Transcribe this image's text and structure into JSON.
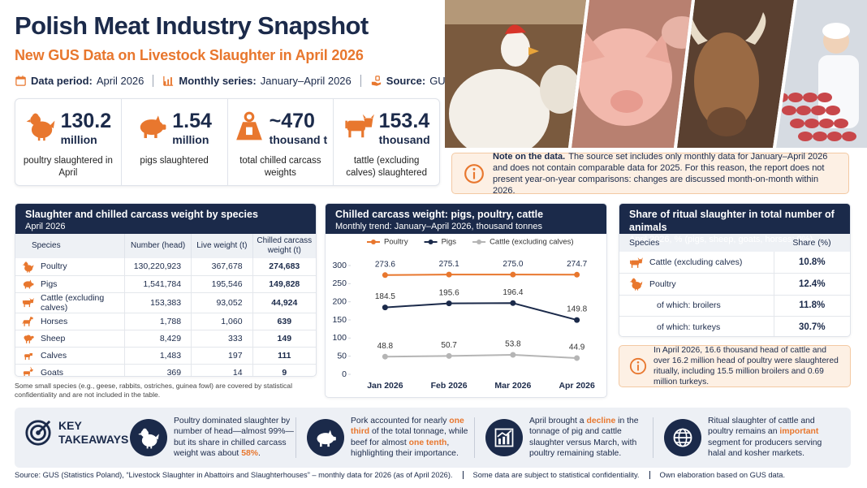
{
  "header": {
    "title": "Polish Meat Industry Snapshot",
    "subtitle": "New GUS Data on Livestock Slaughter in April 2026",
    "meta": [
      {
        "label": "Data period:",
        "value": "April 2026"
      },
      {
        "label": "Monthly series:",
        "value": "January–April 2026"
      },
      {
        "label": "Source:",
        "value": "GUS"
      }
    ]
  },
  "kpis": [
    {
      "value": "130.2",
      "unit": "million",
      "label": "poultry slaughtered in April"
    },
    {
      "value": "1.54",
      "unit": "million",
      "label": "pigs slaughtered"
    },
    {
      "value": "~470",
      "unit": "thousand t",
      "label": "total chilled carcass weights"
    },
    {
      "value": "153.4",
      "unit": "thousand",
      "label": "tattle (excluding calves) slaughtered"
    }
  ],
  "note": {
    "bold": "Note on the data.",
    "text": "The source set includes only monthly data for January–April 2026 and does not contain comparable data for 2025. For this reason, the report does not present year-on-year comparisons: changes are discussed month-on-month within 2026."
  },
  "species_table": {
    "title": "Slaughter and chilled carcass weight by species",
    "subtitle": "April 2026",
    "columns": [
      "Species",
      "Number (head)",
      "Live weight (t)",
      "Chilled carcass weight (t)"
    ],
    "rows": [
      [
        "Poultry",
        "130,220,923",
        "367,678",
        "274,683"
      ],
      [
        "Pigs",
        "1,541,784",
        "195,546",
        "149,828"
      ],
      [
        "Cattle (excluding calves)",
        "153,383",
        "93,052",
        "44,924"
      ],
      [
        "Horses",
        "1,788",
        "1,060",
        "639"
      ],
      [
        "Sheep",
        "8,429",
        "333",
        "149"
      ],
      [
        "Calves",
        "1,483",
        "197",
        "111"
      ],
      [
        "Goats",
        "369",
        "14",
        "9"
      ]
    ],
    "footnote": "Some small species (e.g., geese, rabbits, ostriches, guinea fowl) are covered by statistical confidentiality and are not included in the table."
  },
  "chart_data": {
    "type": "line",
    "title": "Chilled carcass weight: pigs, poultry, cattle",
    "subtitle": "Monthly trend: January–April 2026, thousand tonnes",
    "categories": [
      "Jan 2026",
      "Feb 2026",
      "Mar 2026",
      "Apr 2026"
    ],
    "series": [
      {
        "name": "Poultry",
        "color": "#e8772e",
        "values": [
          273.6,
          275.1,
          275.0,
          274.7
        ],
        "value_labels": [
          "273.6",
          "275.1",
          "275.0",
          "274.7"
        ]
      },
      {
        "name": "Pigs",
        "color": "#1b2a4a",
        "values": [
          184.5,
          195.6,
          196.4,
          149.8
        ],
        "value_labels": [
          "184.5",
          "195.6",
          "196.4",
          "149.8"
        ]
      },
      {
        "name": "Cattle (excluding calves)",
        "color": "#b5b5b5",
        "values": [
          48.8,
          50.7,
          53.8,
          44.9
        ],
        "value_labels": [
          "48.8",
          "50.7",
          "53.8",
          "44.9"
        ]
      }
    ],
    "ylim": [
      0,
      300
    ],
    "yticks": [
      0,
      50,
      100,
      150,
      200,
      250,
      300
    ],
    "legend": "top"
  },
  "ritual": {
    "title": "Share of ritual slaughter in total number of animals",
    "subtitle": "April 2026, % (pigs, sheep, goats, horses: 0%)",
    "columns": [
      "Species",
      "Share (%)"
    ],
    "rows": [
      [
        "Cattle (excluding calves)",
        "10.8%"
      ],
      [
        "Poultry",
        "12.4%"
      ],
      [
        "of which: broilers",
        "11.8%"
      ],
      [
        "of which: turkeys",
        "30.7%"
      ]
    ],
    "note": "In April 2026, 16.6 thousand head of cattle and over 16.2 million head of poultry were slaughtered ritually, including 15.5 million broilers and 0.69 million turkeys."
  },
  "takeaways": {
    "title": "KEY TAKEAWAYS",
    "items": [
      {
        "segments": [
          {
            "text": "Poultry dominated slaughter by number of head—almost 99%—but its share in chilled carcass weight was about "
          },
          {
            "text": "58%",
            "highlight": true
          },
          {
            "text": "."
          }
        ]
      },
      {
        "segments": [
          {
            "text": "Pork accounted for nearly "
          },
          {
            "text": "one third",
            "highlight": true
          },
          {
            "text": " of the total tonnage, while beef for almost "
          },
          {
            "text": "one tenth",
            "highlight": true
          },
          {
            "text": ", highlighting their importance."
          }
        ]
      },
      {
        "segments": [
          {
            "text": "April brought a "
          },
          {
            "text": "decline",
            "highlight": true
          },
          {
            "text": " in the tonnage of pig and cattle slaughter versus March, with poultry remaining stable."
          }
        ]
      },
      {
        "segments": [
          {
            "text": "Ritual slaughter of cattle and poultry remains an "
          },
          {
            "text": "important",
            "highlight": true
          },
          {
            "text": " segment for producers serving halal and kosher markets."
          }
        ]
      }
    ]
  },
  "footer": [
    "Source: GUS (Statistics Poland), “Livestock Slaughter in Abattoirs and Slaughterhouses” – monthly data for 2026 (as of April 2026).",
    "Some data are subject to statistical confidentiality.",
    "Own elaboration based on GUS data."
  ]
}
